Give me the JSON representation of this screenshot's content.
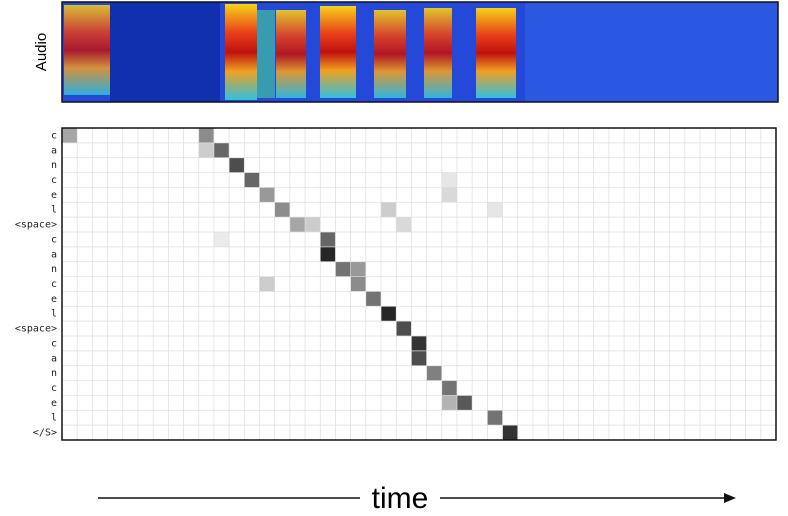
{
  "chart_data": {
    "type": "heatmap",
    "audio_label": "Audio",
    "x_label": "time",
    "rows": [
      "c",
      "a",
      "n",
      "c",
      "e",
      "l",
      "<space>",
      "c",
      "a",
      "n",
      "c",
      "e",
      "l",
      "<space>",
      "c",
      "a",
      "n",
      "c",
      "e",
      "l",
      "</S>"
    ],
    "columns": 47,
    "vlim": [
      0,
      1
    ],
    "cmap": [
      "#ffffff",
      "#000000"
    ],
    "cells": [
      [
        0,
        0,
        0.35
      ],
      [
        0,
        9,
        0.45
      ],
      [
        1,
        9,
        0.2
      ],
      [
        1,
        10,
        0.6
      ],
      [
        2,
        11,
        0.7
      ],
      [
        3,
        12,
        0.6
      ],
      [
        3,
        25,
        0.1
      ],
      [
        4,
        13,
        0.4
      ],
      [
        4,
        25,
        0.15
      ],
      [
        5,
        14,
        0.45
      ],
      [
        5,
        21,
        0.2
      ],
      [
        5,
        28,
        0.1
      ],
      [
        6,
        15,
        0.35
      ],
      [
        6,
        16,
        0.2
      ],
      [
        6,
        22,
        0.15
      ],
      [
        7,
        10,
        0.08
      ],
      [
        7,
        17,
        0.6
      ],
      [
        8,
        17,
        0.85
      ],
      [
        9,
        18,
        0.55
      ],
      [
        9,
        19,
        0.4
      ],
      [
        10,
        13,
        0.2
      ],
      [
        10,
        19,
        0.45
      ],
      [
        11,
        20,
        0.55
      ],
      [
        12,
        21,
        0.85
      ],
      [
        13,
        22,
        0.7
      ],
      [
        14,
        23,
        0.8
      ],
      [
        15,
        23,
        0.7
      ],
      [
        16,
        24,
        0.5
      ],
      [
        17,
        25,
        0.55
      ],
      [
        18,
        25,
        0.3
      ],
      [
        18,
        26,
        0.65
      ],
      [
        19,
        28,
        0.55
      ],
      [
        20,
        29,
        0.8
      ]
    ]
  }
}
